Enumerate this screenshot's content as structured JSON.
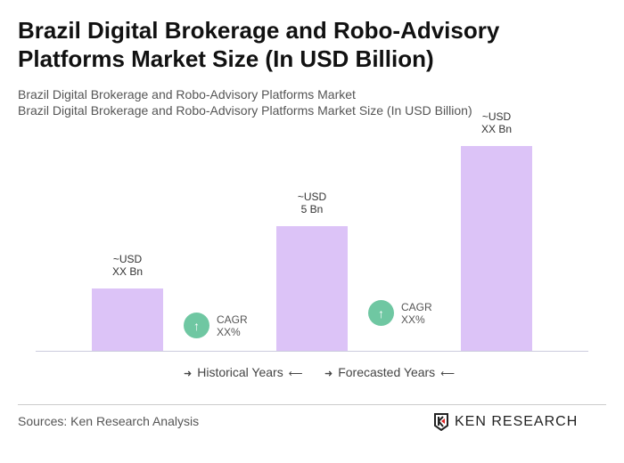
{
  "title": "Brazil Digital Brokerage and Robo-Advisory Platforms Market Size (In USD Billion)",
  "subtitle1": "Brazil Digital Brokerage and Robo-Advisory Platforms Market",
  "subtitle2": "Brazil Digital Brokerage and Robo-Advisory Platforms Market Size (In USD Billion)",
  "chart_data": {
    "type": "bar",
    "categories": [
      "",
      "",
      ""
    ],
    "values": [
      2.5,
      5,
      8.2
    ],
    "data_labels": [
      [
        "~USD",
        "XX Bn"
      ],
      [
        "~USD",
        "5 Bn"
      ],
      [
        "~USD",
        "XX Bn"
      ]
    ],
    "bar_color": "#dcc3f7",
    "cagr": [
      {
        "label": "CAGR",
        "value": "XX%"
      },
      {
        "label": "CAGR",
        "value": "XX%"
      }
    ],
    "cagr_color": "#6fc7a2",
    "legend": [
      "Historical Years",
      "Forecasted Years"
    ],
    "grid": false
  },
  "source": "Sources: Ken Research Analysis",
  "logo_text": "KEN RESEARCH"
}
